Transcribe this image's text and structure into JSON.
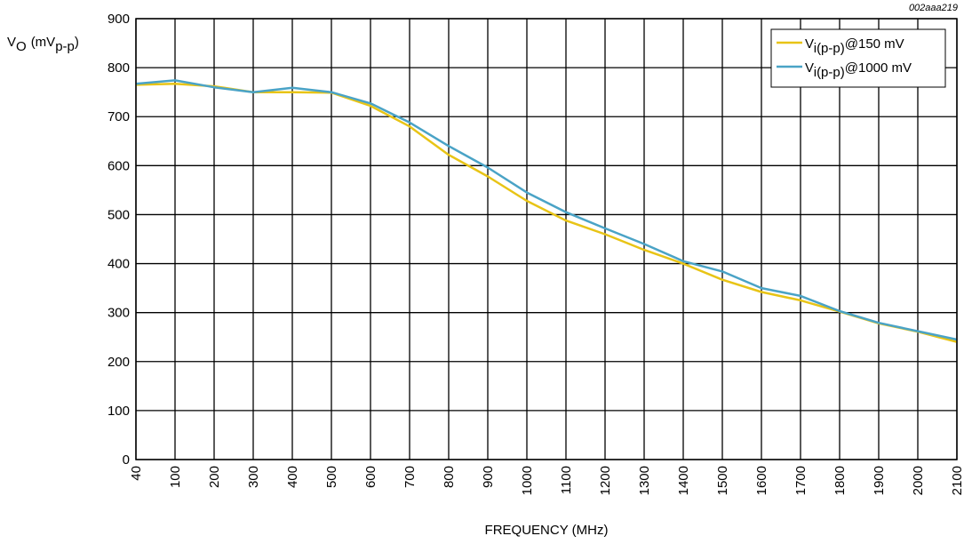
{
  "figure_id": "002aaa219",
  "chart_data": {
    "type": "line",
    "xlabel": "FREQUENCY (MHz)",
    "ylabel": {
      "base": "V",
      "base_sub": "O",
      "unit_prefix": "(mV",
      "unit_sub": "p-p",
      "unit_suffix": ")"
    },
    "categories": [
      "40",
      "100",
      "200",
      "300",
      "400",
      "500",
      "600",
      "700",
      "800",
      "900",
      "1000",
      "1100",
      "1200",
      "1300",
      "1400",
      "1500",
      "1600",
      "1700",
      "1800",
      "1900",
      "2000",
      "2100"
    ],
    "ylim": [
      0,
      900
    ],
    "yticks": [
      0,
      100,
      200,
      300,
      400,
      500,
      600,
      700,
      800,
      900
    ],
    "grid": true,
    "legend_position": "top-right",
    "series": [
      {
        "legend": {
          "base": "V",
          "sub": "i(p-p)",
          "suffix": "@150 mV"
        },
        "color": "#e8c416",
        "values": [
          765,
          767,
          762,
          750,
          750,
          749,
          722,
          680,
          622,
          578,
          528,
          488,
          460,
          428,
          400,
          367,
          342,
          325,
          302,
          278,
          261,
          240
        ]
      },
      {
        "legend": {
          "base": "V",
          "sub": "i(p-p)",
          "suffix": "@1000 mV"
        },
        "color": "#4aa3c6",
        "values": [
          767,
          774,
          760,
          750,
          759,
          750,
          727,
          688,
          640,
          596,
          545,
          505,
          472,
          440,
          405,
          384,
          350,
          334,
          303,
          279,
          262,
          245
        ]
      }
    ]
  }
}
